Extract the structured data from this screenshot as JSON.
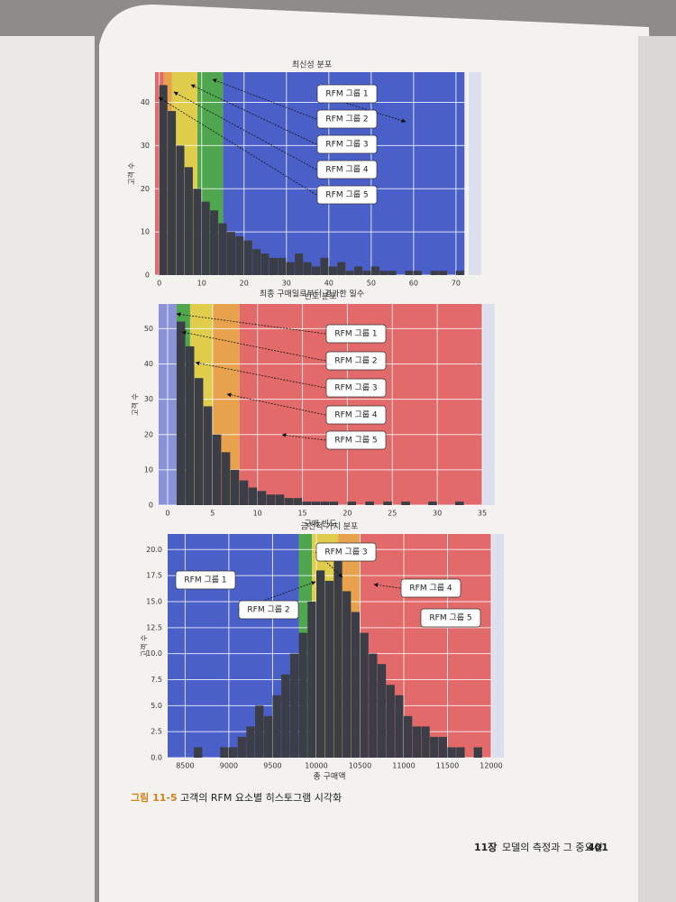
{
  "chart_data": [
    {
      "type": "histogram",
      "title": "최신성 분포",
      "xlabel": "최종 구매일로부터 경과한 일수",
      "ylabel": "고객 수",
      "bins": [
        0,
        2,
        4,
        6,
        8,
        10,
        12,
        14,
        16,
        18,
        20,
        22,
        24,
        26,
        28,
        30,
        32,
        34,
        36,
        38,
        40,
        42,
        44,
        46,
        48,
        50,
        52,
        54,
        56,
        58,
        60,
        62,
        64,
        66,
        68,
        70,
        72
      ],
      "counts": [
        44,
        38,
        30,
        25,
        20,
        17,
        15,
        12,
        10,
        9,
        8,
        6,
        5,
        4,
        4,
        3,
        5,
        3,
        2,
        4,
        2,
        3,
        1,
        2,
        1,
        2,
        1,
        1,
        0,
        1,
        1,
        0,
        1,
        1,
        0,
        1
      ],
      "color": "#3b3e46",
      "xlim": [
        -1,
        73
      ],
      "ylim": [
        0,
        47
      ],
      "xticks": [
        0,
        10,
        20,
        30,
        40,
        50,
        60,
        70
      ],
      "yticks": [
        0,
        10,
        20,
        30,
        40
      ],
      "grid": true,
      "groups": [
        {
          "label": "RFM 그룹 1",
          "range": [
            15,
            72
          ],
          "color": "#4b5fc8"
        },
        {
          "label": "RFM 그룹 2",
          "range": [
            9,
            15
          ],
          "color": "#4fa64f"
        },
        {
          "label": "RFM 그룹 3",
          "range": [
            3,
            9
          ],
          "color": "#e0cd4c"
        },
        {
          "label": "RFM 그룹 4",
          "range": [
            1,
            3
          ],
          "color": "#e8a24d"
        },
        {
          "label": "RFM 그룹 5",
          "range": [
            -1,
            1
          ],
          "color": "#e26a6a"
        }
      ]
    },
    {
      "type": "histogram",
      "title": "빈도 분포",
      "xlabel": "구매 빈도",
      "ylabel": "고객 수",
      "bins": [
        1,
        2,
        3,
        4,
        5,
        6,
        7,
        8,
        9,
        10,
        11,
        12,
        13,
        14,
        15,
        16,
        17,
        18,
        19,
        20,
        21,
        22,
        23,
        24,
        25,
        26,
        27,
        28,
        29,
        30,
        31,
        32,
        33,
        34,
        35
      ],
      "counts": [
        52,
        45,
        36,
        28,
        20,
        15,
        10,
        7,
        5,
        4,
        3,
        3,
        2,
        2,
        1,
        1,
        1,
        1,
        0,
        1,
        0,
        1,
        0,
        1,
        0,
        1,
        0,
        0,
        1,
        0,
        0,
        1,
        0,
        0
      ],
      "color": "#3b3e46",
      "xlim": [
        -1,
        35
      ],
      "ylim": [
        0,
        57
      ],
      "xticks": [
        0,
        5,
        10,
        15,
        20,
        25,
        30,
        35
      ],
      "yticks": [
        0,
        10,
        20,
        30,
        40,
        50
      ],
      "grid": true,
      "groups": [
        {
          "label": "RFM 그룹 1",
          "range": [
            -1,
            1
          ],
          "color": "#8a93d8"
        },
        {
          "label": "RFM 그룹 2",
          "range": [
            1,
            2.5
          ],
          "color": "#4fa64f"
        },
        {
          "label": "RFM 그룹 3",
          "range": [
            2.5,
            5
          ],
          "color": "#e0cd4c"
        },
        {
          "label": "RFM 그룹 4",
          "range": [
            5,
            8
          ],
          "color": "#e8a24d"
        },
        {
          "label": "RFM 그룹 5",
          "range": [
            8,
            35
          ],
          "color": "#e26a6a"
        }
      ]
    },
    {
      "type": "histogram",
      "title": "금전적 가치 분포",
      "xlabel": "총 구매액",
      "ylabel": "고객 수",
      "bins": [
        8400,
        8500,
        8600,
        8700,
        8800,
        8900,
        9000,
        9100,
        9200,
        9300,
        9400,
        9500,
        9600,
        9700,
        9800,
        9900,
        10000,
        10100,
        10200,
        10300,
        10400,
        10500,
        10600,
        10700,
        10800,
        10900,
        11000,
        11100,
        11200,
        11300,
        11400,
        11500,
        11600,
        11700,
        11800,
        11900
      ],
      "counts": [
        0,
        0,
        1,
        0,
        0,
        1,
        1,
        2,
        3,
        5,
        4,
        6,
        8,
        10,
        12,
        15,
        18,
        17,
        19,
        16,
        14,
        12,
        10,
        9,
        7,
        6,
        4,
        3,
        3,
        2,
        2,
        1,
        1,
        0,
        1
      ],
      "color": "#3b3e46",
      "xlim": [
        8300,
        12000
      ],
      "ylim": [
        0,
        21.5
      ],
      "xticks": [
        8500,
        9000,
        9500,
        10000,
        10500,
        11000,
        11500,
        12000
      ],
      "yticks": [
        {
          "value": 0,
          "label": "0.0"
        },
        {
          "value": 2.5,
          "label": "2.5"
        },
        {
          "value": 5,
          "label": "5.0"
        },
        {
          "value": 7.5,
          "label": "7.5"
        },
        {
          "value": 10,
          "label": "10.0"
        },
        {
          "value": 12.5,
          "label": "12.5"
        },
        {
          "value": 15,
          "label": "15.0"
        },
        {
          "value": 17.5,
          "label": "17.5"
        },
        {
          "value": 20,
          "label": "20.0"
        }
      ],
      "grid": true,
      "groups": [
        {
          "label": "RFM 그룹 1",
          "range": [
            8300,
            9800
          ],
          "color": "#4b5fc8"
        },
        {
          "label": "RFM 그룹 2",
          "range": [
            9800,
            9950
          ],
          "color": "#4fa64f"
        },
        {
          "label": "RFM 그룹 3",
          "range": [
            9950,
            10250
          ],
          "color": "#e0cd4c"
        },
        {
          "label": "RFM 그룹 4",
          "range": [
            10250,
            10500
          ],
          "color": "#e8a24d"
        },
        {
          "label": "RFM 그룹 5",
          "range": [
            10500,
            12000
          ],
          "color": "#e26a6a"
        }
      ]
    }
  ],
  "caption": {
    "label": "그림 11-5",
    "text": "고객의 RFM 요소별 히스토그램 시각화"
  },
  "footer": {
    "chapter": "11장",
    "title": "모델의 측정과 그 중요성",
    "page": "401"
  }
}
